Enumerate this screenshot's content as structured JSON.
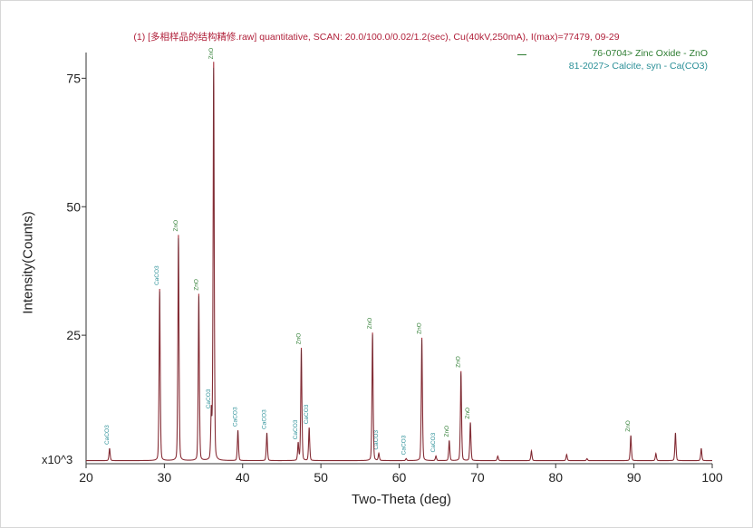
{
  "chart_data": {
    "type": "line",
    "title": "(1) [多相样品的结构精修.raw] quantitative, SCAN: 20.0/100.0/0.02/1.2(sec), Cu(40kV,250mA), I(max)=77479, 09-29",
    "xlabel": "Two-Theta (deg)",
    "ylabel": "Intensity(Counts)",
    "y_multiplier": "x10^3",
    "xlim": [
      20,
      100
    ],
    "ylim": [
      0,
      80
    ],
    "x_ticks": [
      20,
      30,
      40,
      50,
      60,
      70,
      80,
      90,
      100
    ],
    "y_ticks": [
      25,
      50,
      75
    ],
    "grid": false,
    "legend_position": "top-right",
    "legend": [
      {
        "label": "76-0704> Zinc Oxide - ZnO",
        "color": "#2e7d32"
      },
      {
        "label": "81-2027> Calcite, syn - Ca(CO3)",
        "color": "#2a8f97"
      }
    ],
    "baseline": 0.6,
    "series": [
      {
        "role": "observed",
        "color": "#a8323e",
        "peaks": [
          [
            23.0,
            3.0
          ],
          [
            29.4,
            34.0
          ],
          [
            31.8,
            44.5
          ],
          [
            34.4,
            33.0
          ],
          [
            36.0,
            10.0
          ],
          [
            36.3,
            78.0
          ],
          [
            39.4,
            6.5
          ],
          [
            43.1,
            6.0
          ],
          [
            47.1,
            4.0
          ],
          [
            47.5,
            22.5
          ],
          [
            48.5,
            7.0
          ],
          [
            56.6,
            25.5
          ],
          [
            57.4,
            2.0
          ],
          [
            60.9,
            1.0
          ],
          [
            62.9,
            24.5
          ],
          [
            64.7,
            1.5
          ],
          [
            66.4,
            4.5
          ],
          [
            67.9,
            18.0
          ],
          [
            69.1,
            8.0
          ],
          [
            72.6,
            1.5
          ],
          [
            76.9,
            2.5
          ],
          [
            81.4,
            1.8
          ],
          [
            84.0,
            1.0
          ],
          [
            89.6,
            5.5
          ],
          [
            92.8,
            2.0
          ],
          [
            95.3,
            6.0
          ],
          [
            98.6,
            3.0
          ]
        ]
      }
    ],
    "peak_labels": [
      {
        "x": 23.0,
        "y": 3.0,
        "text": "CaCO3",
        "color": "#2a8f97"
      },
      {
        "x": 29.4,
        "y": 34.0,
        "text": "CaCO3",
        "color": "#2a8f97"
      },
      {
        "x": 31.8,
        "y": 44.5,
        "text": "ZnO",
        "color": "#2e7d32"
      },
      {
        "x": 34.4,
        "y": 33.0,
        "text": "ZnO",
        "color": "#2e7d32"
      },
      {
        "x": 36.0,
        "y": 10.0,
        "text": "CaCO3",
        "color": "#2a8f97"
      },
      {
        "x": 36.3,
        "y": 78.0,
        "text": "ZnO",
        "color": "#2e7d32"
      },
      {
        "x": 39.4,
        "y": 6.5,
        "text": "CaCO3",
        "color": "#2a8f97"
      },
      {
        "x": 43.1,
        "y": 6.0,
        "text": "CaCO3",
        "color": "#2a8f97"
      },
      {
        "x": 47.1,
        "y": 4.0,
        "text": "CaCO3",
        "color": "#2a8f97"
      },
      {
        "x": 47.5,
        "y": 22.5,
        "text": "ZnO",
        "color": "#2e7d32"
      },
      {
        "x": 48.5,
        "y": 7.0,
        "text": "CaCO3",
        "color": "#2a8f97"
      },
      {
        "x": 56.6,
        "y": 25.5,
        "text": "ZnO",
        "color": "#2e7d32"
      },
      {
        "x": 57.4,
        "y": 2.0,
        "text": "CaCO3",
        "color": "#2a8f97"
      },
      {
        "x": 60.9,
        "y": 1.0,
        "text": "CaCO3",
        "color": "#2a8f97"
      },
      {
        "x": 62.9,
        "y": 24.5,
        "text": "ZnO",
        "color": "#2e7d32"
      },
      {
        "x": 64.7,
        "y": 1.5,
        "text": "CaCO3",
        "color": "#2a8f97"
      },
      {
        "x": 66.4,
        "y": 4.5,
        "text": "ZnO",
        "color": "#2e7d32"
      },
      {
        "x": 67.9,
        "y": 18.0,
        "text": "ZnO",
        "color": "#2e7d32"
      },
      {
        "x": 69.1,
        "y": 8.0,
        "text": "ZnO",
        "color": "#2e7d32"
      },
      {
        "x": 89.6,
        "y": 5.5,
        "text": "ZnO",
        "color": "#2e7d32"
      }
    ]
  }
}
